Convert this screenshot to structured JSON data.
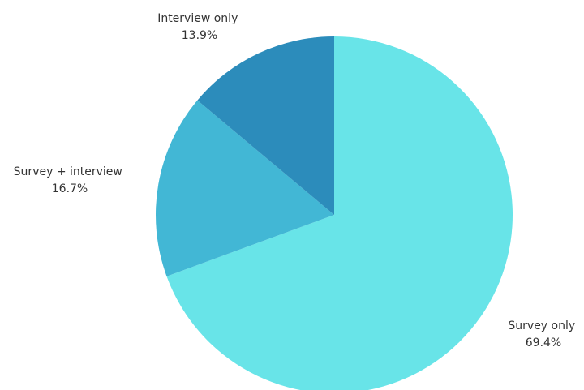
{
  "chart_data": {
    "type": "pie",
    "title": "",
    "start_angle": "12 o'clock",
    "direction": "clockwise",
    "legend": "none",
    "slices": [
      {
        "label": "Survey only",
        "value": 69.4,
        "value_label": "69.4%",
        "color": "#68E4E8"
      },
      {
        "label": "Survey + interview",
        "value": 16.7,
        "value_label": "16.7%",
        "color": "#42B7D5"
      },
      {
        "label": "Interview only",
        "value": 13.9,
        "value_label": "13.9%",
        "color": "#2C8CBB"
      }
    ]
  }
}
